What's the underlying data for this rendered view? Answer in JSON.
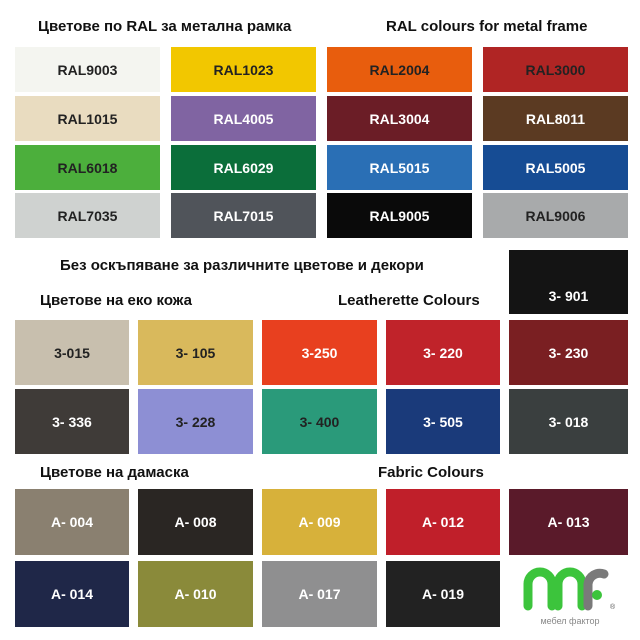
{
  "headings": {
    "ral_bg": "Цветове по RAL за метална рамка",
    "ral_en": "RAL colours for metal frame",
    "note": "Без оскъпяване за различните цветове и декори",
    "leather_bg": "Цветове на еко кожа",
    "leather_en": "Leatherette Colours",
    "fabric_bg": "Цветове на дамаска",
    "fabric_en": "Fabric Colours"
  },
  "ral": [
    {
      "code": "RAL9003",
      "color": "#f4f5f0",
      "text": "#222"
    },
    {
      "code": "RAL1023",
      "color": "#f2c700",
      "text": "#222"
    },
    {
      "code": "RAL2004",
      "color": "#e85d0d",
      "text": "#222"
    },
    {
      "code": "RAL3000",
      "color": "#b02524",
      "text": "#222"
    },
    {
      "code": "RAL1015",
      "color": "#e9dcc0",
      "text": "#222"
    },
    {
      "code": "RAL4005",
      "color": "#8064a2",
      "text": "#fff"
    },
    {
      "code": "RAL3004",
      "color": "#6b1d26",
      "text": "#fff"
    },
    {
      "code": "RAL8011",
      "color": "#5b3a22",
      "text": "#fff"
    },
    {
      "code": "RAL6018",
      "color": "#4caf3c",
      "text": "#222"
    },
    {
      "code": "RAL6029",
      "color": "#0b6e3a",
      "text": "#fff"
    },
    {
      "code": "RAL5015",
      "color": "#2a6fb5",
      "text": "#fff"
    },
    {
      "code": "RAL5005",
      "color": "#164c94",
      "text": "#fff"
    },
    {
      "code": "RAL7035",
      "color": "#cfd2d0",
      "text": "#222"
    },
    {
      "code": "RAL7015",
      "color": "#50545a",
      "text": "#fff"
    },
    {
      "code": "RAL9005",
      "color": "#0a0a0a",
      "text": "#fff"
    },
    {
      "code": "RAL9006",
      "color": "#a8aaab",
      "text": "#222"
    }
  ],
  "leather_extra": {
    "code": "3- 901",
    "color": "#141414",
    "text": "#fff"
  },
  "leather": [
    {
      "code": "3-015",
      "color": "#c8bfae",
      "text": "#222"
    },
    {
      "code": "3- 105",
      "color": "#d9b95c",
      "text": "#222"
    },
    {
      "code": "3-250",
      "color": "#e8401f",
      "text": "#fff"
    },
    {
      "code": "3- 220",
      "color": "#c0232a",
      "text": "#fff"
    },
    {
      "code": "3- 230",
      "color": "#7a1f22",
      "text": "#fff"
    },
    {
      "code": "3- 336",
      "color": "#3f3b38",
      "text": "#fff"
    },
    {
      "code": "3- 228",
      "color": "#8d8fd4",
      "text": "#222"
    },
    {
      "code": "3- 400",
      "color": "#2a9a7a",
      "text": "#222"
    },
    {
      "code": "3- 505",
      "color": "#1a3a7a",
      "text": "#fff"
    },
    {
      "code": "3- 018",
      "color": "#3a3f3f",
      "text": "#fff"
    }
  ],
  "fabric": [
    {
      "code": "A- 004",
      "color": "#8a8070",
      "text": "#fff"
    },
    {
      "code": "A- 008",
      "color": "#2a2623",
      "text": "#fff"
    },
    {
      "code": "A- 009",
      "color": "#d7b13a",
      "text": "#fff"
    },
    {
      "code": "A- 012",
      "color": "#c01f2a",
      "text": "#fff"
    },
    {
      "code": "A- 013",
      "color": "#5a1a2a",
      "text": "#fff"
    },
    {
      "code": "A- 014",
      "color": "#1f2748",
      "text": "#fff"
    },
    {
      "code": "A- 010",
      "color": "#8a8a3a",
      "text": "#fff"
    },
    {
      "code": "A- 017",
      "color": "#8f8f90",
      "text": "#fff"
    },
    {
      "code": "A- 019",
      "color": "#222222",
      "text": "#fff"
    }
  ],
  "logo": {
    "text": "мебел фактор",
    "green": "#3cc43c",
    "gray": "#7a7a7a"
  }
}
